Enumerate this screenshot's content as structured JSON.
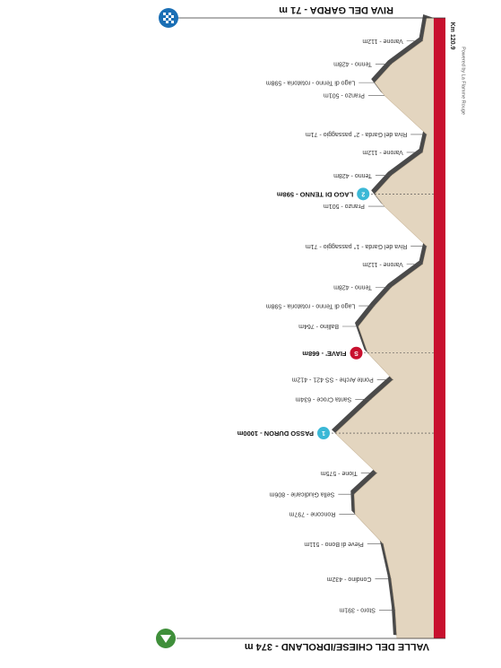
{
  "chart_data": {
    "type": "elevation-profile",
    "start": {
      "label": "VALLE DEL CHIESE/IDROLAND - 374 m",
      "km": 0,
      "elevation": 374
    },
    "finish": {
      "label": "RIVA DEL GARDA - 71 m",
      "km": 120.9,
      "elevation": 71,
      "distance_label": "Km 120.9"
    },
    "credit": "Powered by La Flamme Rouge",
    "waypoints": [
      {
        "label": "Storo - 391m",
        "km": 5.5,
        "elevation": 391
      },
      {
        "label": "Condino - 432m",
        "km": 11.6,
        "elevation": 432
      },
      {
        "label": "Pieve di Bono - 511m",
        "km": 18.4,
        "elevation": 511
      },
      {
        "label": "Roncone - 797m",
        "km": 24.2,
        "elevation": 797
      },
      {
        "label": "Sella Giudicarie - 806m",
        "km": 28.1,
        "elevation": 806
      },
      {
        "label": "Tione - 575m",
        "km": 32.2,
        "elevation": 575
      },
      {
        "label": "PASSO DURON - 1000m",
        "km": 40.0,
        "elevation": 1000,
        "marker": "gpm",
        "badge": "1"
      },
      {
        "label": "Santa Croce - 634m",
        "km": 46.6,
        "elevation": 634
      },
      {
        "label": "Ponte Arche - SS 421 - 412m",
        "km": 50.4,
        "elevation": 412
      },
      {
        "label": "FIAVE' - 668m",
        "km": 55.6,
        "elevation": 668,
        "marker": "sprint",
        "badge": "S"
      },
      {
        "label": "Ballino - 764m",
        "km": 60.8,
        "elevation": 764
      },
      {
        "label": "Lago di Tenno - rotatoria - 598m",
        "km": 64.8,
        "elevation": 598
      },
      {
        "label": "Tenno - 428m",
        "km": 68.4,
        "elevation": 428
      },
      {
        "label": "Varone - 112m",
        "km": 72.9,
        "elevation": 112
      },
      {
        "label": "Riva del Garda - 1° passaggio - 71m",
        "km": 76.4,
        "elevation": 71
      },
      {
        "label": "Pranzo - 501m",
        "km": 84.2,
        "elevation": 501
      },
      {
        "label": "LAGO DI TENNO - 598m",
        "km": 86.6,
        "elevation": 598,
        "marker": "gpm",
        "badge": "2"
      },
      {
        "label": "Tenno - 428m",
        "km": 90.2,
        "elevation": 428
      },
      {
        "label": "Varone - 112m",
        "km": 94.7,
        "elevation": 112
      },
      {
        "label": "Riva del Garda - 2° passaggio - 71m",
        "km": 98.2,
        "elevation": 71
      },
      {
        "label": "Pranzo - 501m",
        "km": 105.8,
        "elevation": 501
      },
      {
        "label": "Lago di Tenno - rotatoria - 598m",
        "km": 108.3,
        "elevation": 598
      },
      {
        "label": "Tenno - 428m",
        "km": 111.9,
        "elevation": 428
      },
      {
        "label": "Varone - 112m",
        "km": 116.4,
        "elevation": 112
      }
    ]
  }
}
